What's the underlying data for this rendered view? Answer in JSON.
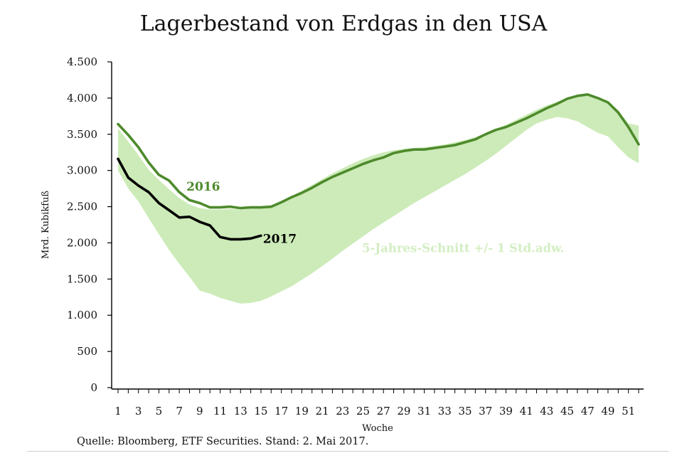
{
  "title": "Lagerbestand von Erdgas in den USA",
  "source": "Quelle: Bloomberg, ETF Securities. Stand: 2. Mai 2017.",
  "colors": {
    "band": "#ccebb8",
    "band_label": "#d3eec2",
    "series_2016": "#4e8a2c",
    "series_2017": "#000000",
    "label_2016": "#4e8a2c"
  },
  "chart_data": {
    "type": "line",
    "xlabel": "Woche",
    "ylabel": "Mrd. Kubikfuß",
    "ylim": [
      0,
      4500
    ],
    "xlim": [
      1,
      52
    ],
    "y_ticks": [
      {
        "value": 0,
        "label": "0"
      },
      {
        "value": 500,
        "label": "500"
      },
      {
        "value": 1000,
        "label": "1.000"
      },
      {
        "value": 1500,
        "label": "1.500"
      },
      {
        "value": 2000,
        "label": "2.000"
      },
      {
        "value": 2500,
        "label": "2.500"
      },
      {
        "value": 3000,
        "label": "3.000"
      },
      {
        "value": 3500,
        "label": "3.500"
      },
      {
        "value": 4000,
        "label": "4.000"
      },
      {
        "value": 4500,
        "label": "4.500"
      }
    ],
    "x_tick_labels": [
      "1",
      "3",
      "5",
      "7",
      "9",
      "11",
      "13",
      "15",
      "17",
      "19",
      "21",
      "23",
      "25",
      "27",
      "29",
      "31",
      "33",
      "35",
      "37",
      "39",
      "41",
      "43",
      "45",
      "47",
      "49",
      "51"
    ],
    "grid": false,
    "band": {
      "name": "5-Jahres-Schnitt +/- 1 Std.adw.",
      "x": [
        1,
        2,
        3,
        4,
        5,
        6,
        7,
        8,
        9,
        10,
        11,
        12,
        13,
        14,
        15,
        16,
        17,
        18,
        19,
        20,
        21,
        22,
        23,
        24,
        25,
        26,
        27,
        28,
        29,
        30,
        31,
        32,
        33,
        34,
        35,
        36,
        37,
        38,
        39,
        40,
        41,
        42,
        43,
        44,
        45,
        46,
        47,
        48,
        49,
        50,
        51,
        52
      ],
      "upper": [
        3580,
        3400,
        3210,
        3010,
        2870,
        2740,
        2620,
        2530,
        2480,
        2460,
        2460,
        2470,
        2460,
        2470,
        2480,
        2500,
        2560,
        2640,
        2720,
        2800,
        2880,
        2960,
        3030,
        3100,
        3160,
        3210,
        3250,
        3280,
        3300,
        3310,
        3320,
        3340,
        3360,
        3390,
        3420,
        3460,
        3510,
        3570,
        3630,
        3700,
        3770,
        3840,
        3900,
        3950,
        3990,
        4020,
        4030,
        4010,
        3960,
        3830,
        3650,
        3620
      ],
      "lower": [
        3000,
        2750,
        2570,
        2340,
        2120,
        1900,
        1710,
        1530,
        1340,
        1300,
        1240,
        1200,
        1160,
        1170,
        1200,
        1260,
        1330,
        1400,
        1490,
        1580,
        1680,
        1780,
        1890,
        1990,
        2090,
        2190,
        2280,
        2370,
        2460,
        2550,
        2630,
        2710,
        2790,
        2870,
        2950,
        3040,
        3130,
        3230,
        3340,
        3450,
        3560,
        3650,
        3700,
        3740,
        3720,
        3680,
        3600,
        3520,
        3470,
        3320,
        3180,
        3100
      ]
    },
    "series": [
      {
        "name": "2016",
        "x": [
          1,
          2,
          3,
          4,
          5,
          6,
          7,
          8,
          9,
          10,
          11,
          12,
          13,
          14,
          15,
          16,
          17,
          18,
          19,
          20,
          21,
          22,
          23,
          24,
          25,
          26,
          27,
          28,
          29,
          30,
          31,
          32,
          33,
          34,
          35,
          36,
          37,
          38,
          39,
          40,
          41,
          42,
          43,
          44,
          45,
          46,
          47,
          48,
          49,
          50,
          51,
          52
        ],
        "values": [
          3640,
          3490,
          3320,
          3110,
          2940,
          2860,
          2700,
          2590,
          2550,
          2490,
          2490,
          2500,
          2480,
          2490,
          2490,
          2500,
          2560,
          2630,
          2690,
          2760,
          2840,
          2910,
          2970,
          3030,
          3090,
          3140,
          3180,
          3240,
          3270,
          3290,
          3290,
          3310,
          3330,
          3350,
          3390,
          3430,
          3500,
          3560,
          3600,
          3660,
          3720,
          3790,
          3860,
          3920,
          3990,
          4030,
          4050,
          4000,
          3940,
          3800,
          3600,
          3360
        ]
      },
      {
        "name": "2017",
        "x": [
          1,
          2,
          3,
          4,
          5,
          6,
          7,
          8,
          9,
          10,
          11,
          12,
          13,
          14,
          15
        ],
        "values": [
          3160,
          2900,
          2790,
          2700,
          2550,
          2450,
          2350,
          2360,
          2290,
          2240,
          2080,
          2050,
          2050,
          2060,
          2100
        ]
      }
    ]
  }
}
